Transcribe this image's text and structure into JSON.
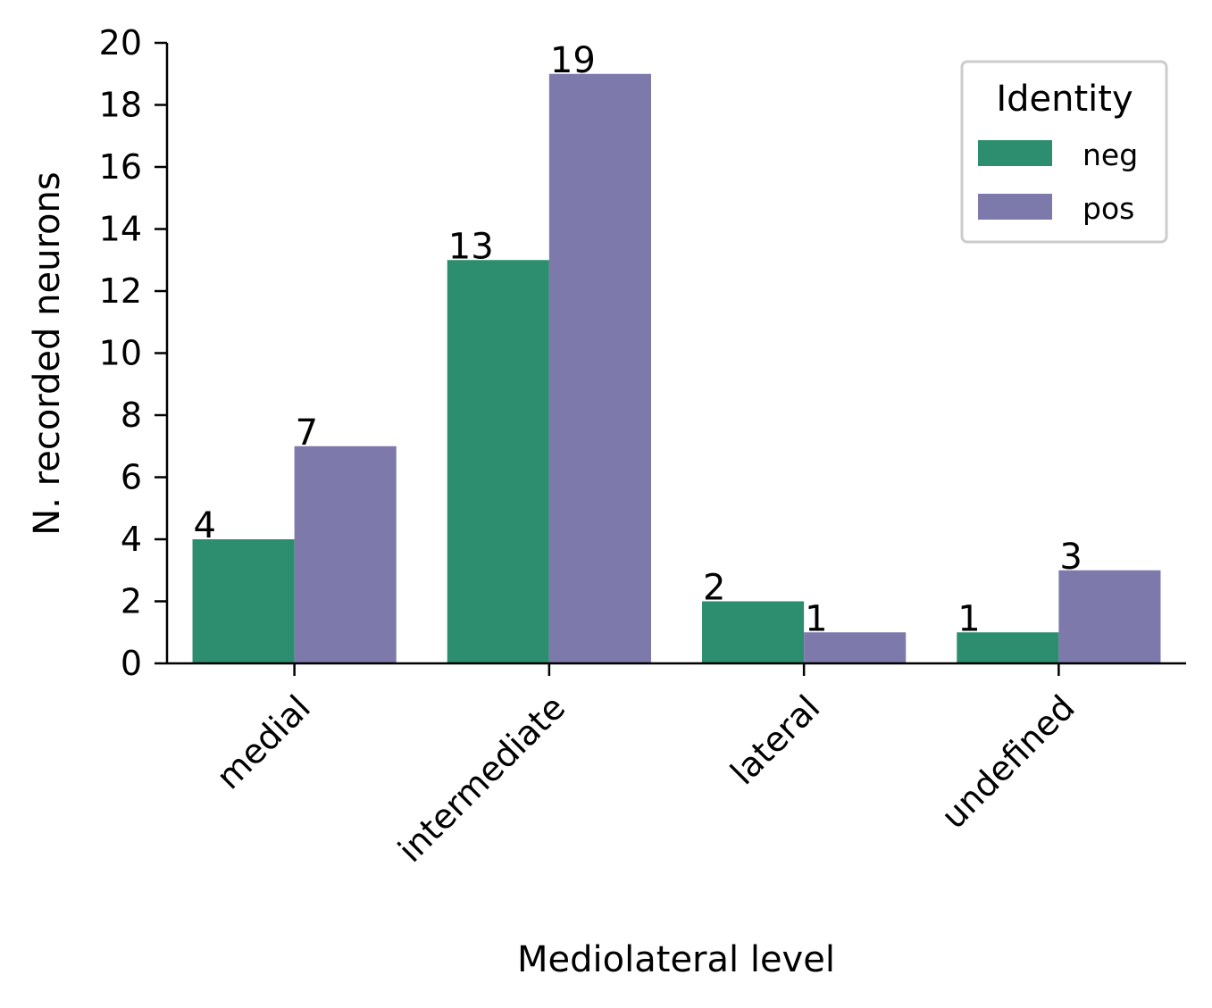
{
  "chart_data": {
    "type": "bar",
    "title": "",
    "xlabel": "Mediolateral level",
    "ylabel": "N. recorded neurons",
    "categories": [
      "medial",
      "intermediate",
      "lateral",
      "undefined"
    ],
    "series": [
      {
        "name": "neg",
        "values": [
          4,
          13,
          2,
          1
        ],
        "color": "#2c8e6e"
      },
      {
        "name": "pos",
        "values": [
          7,
          19,
          1,
          3
        ],
        "color": "#7e79ab"
      }
    ],
    "ylim": [
      0,
      20
    ],
    "yticks": [
      0,
      2,
      4,
      6,
      8,
      10,
      12,
      14,
      16,
      18,
      20
    ],
    "grid": false,
    "legend": {
      "title": "Identity",
      "placement": "top-right"
    },
    "bar_labels": true
  }
}
